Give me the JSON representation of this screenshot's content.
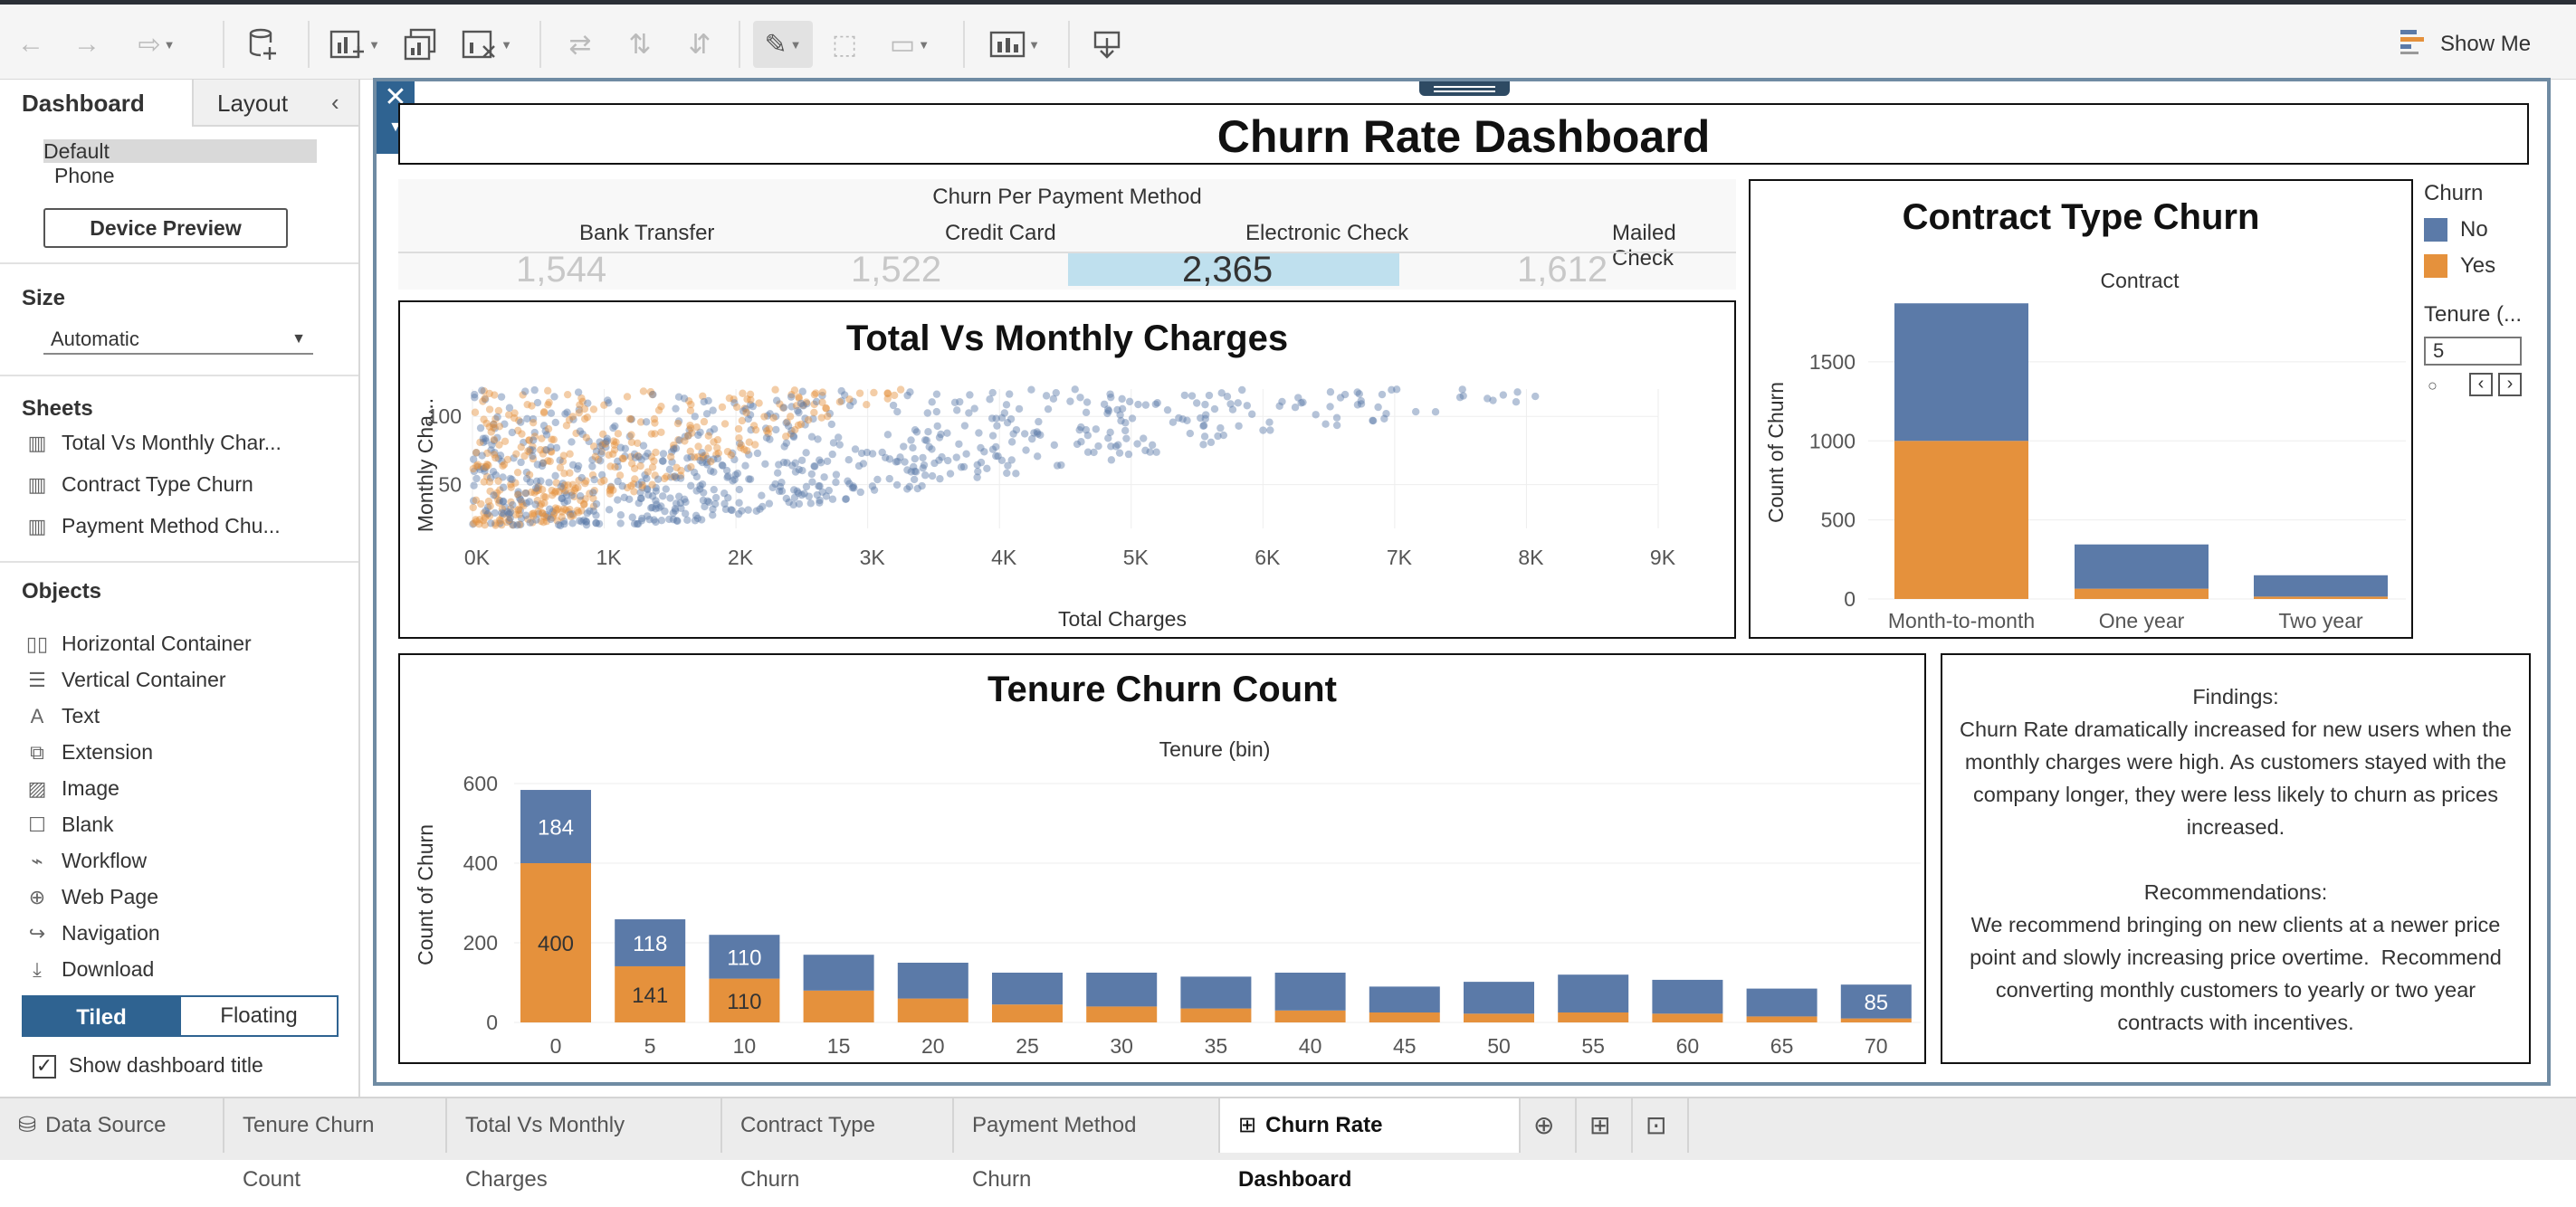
{
  "toolbar": {
    "show_me_label": "Show Me",
    "icons": [
      "undo-icon",
      "redo-icon",
      "replay-icon",
      "new-data-source-icon",
      "new-worksheet-icon",
      "duplicate-sheet-icon",
      "clear-sheet-icon",
      "swap-icon",
      "sort-ascending-icon",
      "sort-descending-icon",
      "highlight-icon",
      "labels-icon",
      "fit-icon",
      "presentation-icon",
      "share-icon",
      "show-me-icon"
    ]
  },
  "left_pane": {
    "tabs": [
      "Dashboard",
      "Layout"
    ],
    "device": {
      "selected": "Default",
      "other": "Phone"
    },
    "device_preview_label": "Device Preview",
    "size_heading": "Size",
    "size_value": "Automatic",
    "sheets_heading": "Sheets",
    "sheets": [
      "Total Vs Monthly Char...",
      "Contract Type Churn",
      "Payment Method Chu..."
    ],
    "objects_heading": "Objects",
    "objects": [
      "Horizontal Container",
      "Vertical Container",
      "Text",
      "Extension",
      "Image",
      "Blank",
      "Workflow",
      "Web Page",
      "Navigation",
      "Download"
    ],
    "tiled_label": "Tiled",
    "floating_label": "Floating",
    "show_title_label": "Show dashboard title"
  },
  "dashboard": {
    "title": "Churn Rate Dashboard",
    "colors": {
      "no": "#5b7aa8",
      "yes": "#e5913c",
      "highlight": "#bfe0ee"
    },
    "payment": {
      "heading": "Churn Per Payment Method",
      "methods": [
        {
          "label": "Bank Transfer",
          "value": "1,544"
        },
        {
          "label": "Credit Card",
          "value": "1,522"
        },
        {
          "label": "Electronic Check",
          "value": "2,365"
        },
        {
          "label": "Mailed Check",
          "value": "1,612"
        }
      ]
    },
    "scatter": {
      "title": "Total Vs Monthly Charges",
      "ylabel": "Monthly Cha...",
      "xlabel": "Total Charges"
    },
    "contract": {
      "title": "Contract Type Churn",
      "header": "Contract",
      "ylabel": "Count of Churn"
    },
    "legend": {
      "title": "Churn",
      "items": [
        {
          "label": "No",
          "color": "#5b7aa8"
        },
        {
          "label": "Yes",
          "color": "#e5913c"
        }
      ]
    },
    "tenure_filter": {
      "title": "Tenure (...",
      "value": "5"
    },
    "tenure": {
      "title": "Tenure Churn Count",
      "header": "Tenure (bin)",
      "ylabel": "Count of Churn",
      "labels": {
        "no_0": "184",
        "yes_0": "400",
        "no_5": "118",
        "yes_5": "141",
        "no_10": "110",
        "yes_10": "110",
        "no_70": "85"
      }
    },
    "findings": {
      "heading": "Findings:",
      "text": "Churn Rate dramatically increased for new users when the monthly charges were high. As customers stayed with the company longer, they were less likely to churn as prices increased.",
      "rec_heading": "Recommendations:",
      "rec_text": "We recommend bringing on new clients at a newer price point and slowly increasing price overtime.  Recommend converting monthly customers to yearly or two year contracts with incentives."
    }
  },
  "bottom_tabs": [
    "Data Source",
    "Tenure Churn Count",
    "Total Vs Monthly Charges",
    "Contract Type Churn",
    "Payment Method Churn",
    "Churn Rate Dashboard"
  ],
  "active_tab": "Churn Rate Dashboard",
  "chart_data": [
    {
      "type": "scatter",
      "title": "Total Vs Monthly Charges",
      "xlabel": "Total Charges",
      "ylabel": "Monthly Cha...",
      "xlim": [
        0,
        9000
      ],
      "ylim": [
        18,
        120
      ],
      "xticks": [
        "0K",
        "1K",
        "2K",
        "3K",
        "4K",
        "5K",
        "6K",
        "7K",
        "8K",
        "9K"
      ],
      "yticks": [
        50,
        100
      ],
      "series": [
        {
          "name": "No",
          "approx_points": [
            [
              300,
              20
            ],
            [
              1000,
              45
            ],
            [
              2000,
              25
            ],
            [
              2500,
              90
            ],
            [
              3500,
              80
            ],
            [
              4500,
              95
            ],
            [
              5500,
              100
            ],
            [
              6500,
              105
            ],
            [
              7500,
              108
            ],
            [
              8500,
              115
            ]
          ]
        },
        {
          "name": "Yes",
          "approx_points": [
            [
              200,
              75
            ],
            [
              500,
              90
            ],
            [
              800,
              95
            ],
            [
              1500,
              100
            ],
            [
              2000,
              85
            ],
            [
              3000,
              95
            ],
            [
              4000,
              100
            ],
            [
              5000,
              105
            ],
            [
              6000,
              108
            ],
            [
              7000,
              110
            ]
          ]
        }
      ]
    },
    {
      "type": "bar",
      "title": "Contract Type Churn",
      "xlabel": "Contract",
      "ylabel": "Count of Churn",
      "categories": [
        "Month-to-month",
        "One year",
        "Two year"
      ],
      "yticks": [
        0,
        500,
        1000,
        1500
      ],
      "ylim": [
        0,
        1900
      ],
      "series": [
        {
          "name": "Yes",
          "values": [
            1000,
            65,
            15
          ]
        },
        {
          "name": "No",
          "values": [
            870,
            280,
            135
          ]
        }
      ]
    },
    {
      "type": "bar",
      "title": "Tenure Churn Count",
      "xlabel": "Tenure (bin)",
      "ylabel": "Count of Churn",
      "categories": [
        "0",
        "5",
        "10",
        "15",
        "20",
        "25",
        "30",
        "35",
        "40",
        "45",
        "50",
        "55",
        "60",
        "65",
        "70"
      ],
      "yticks": [
        0,
        200,
        400,
        600
      ],
      "ylim": [
        0,
        640
      ],
      "series": [
        {
          "name": "Yes",
          "values": [
            400,
            141,
            110,
            80,
            60,
            45,
            40,
            35,
            30,
            25,
            22,
            25,
            22,
            15,
            10
          ]
        },
        {
          "name": "No",
          "values": [
            184,
            118,
            110,
            90,
            90,
            80,
            85,
            80,
            95,
            65,
            80,
            95,
            85,
            70,
            85
          ]
        }
      ]
    }
  ]
}
